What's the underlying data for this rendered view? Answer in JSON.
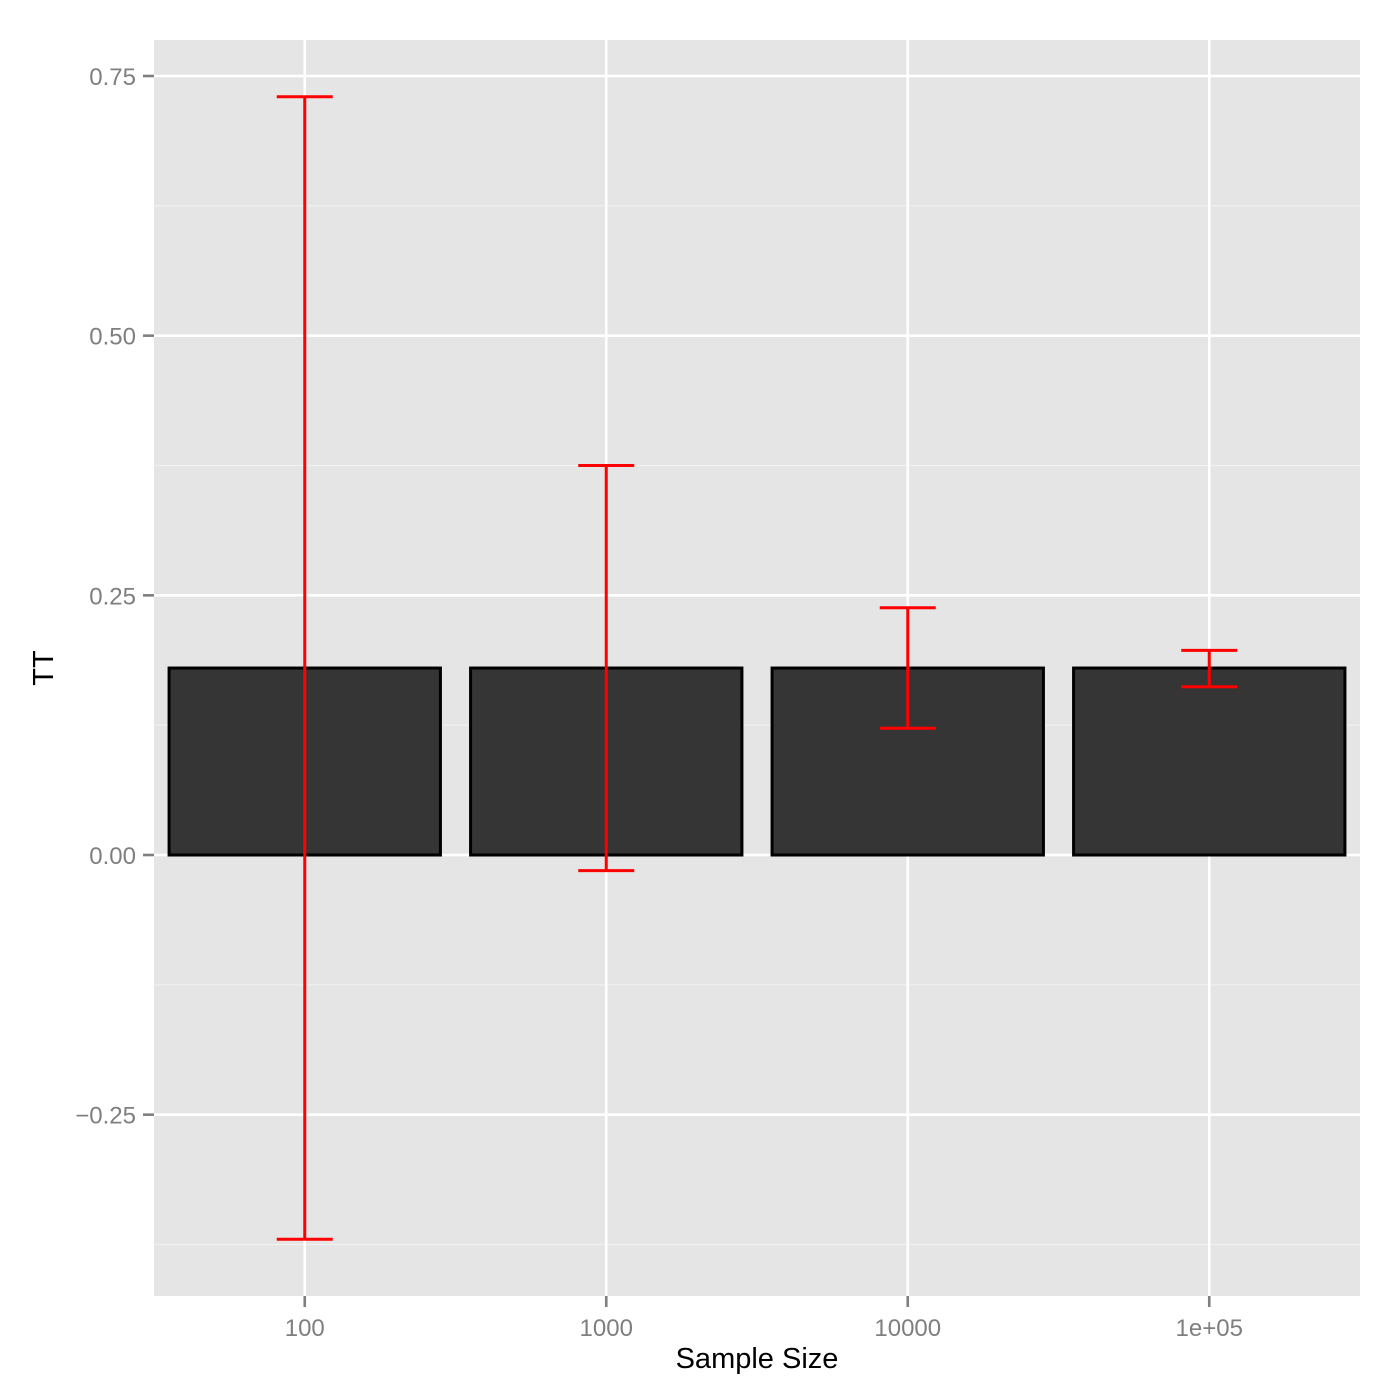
{
  "chart_data": {
    "type": "bar",
    "title": "",
    "xlabel": "Sample Size",
    "ylabel": "TT",
    "categories": [
      "100",
      "1000",
      "10000",
      "1e+05"
    ],
    "values": [
      0.18,
      0.18,
      0.18,
      0.18
    ],
    "error_bars": {
      "upper": [
        0.73,
        0.375,
        0.238,
        0.197
      ],
      "lower": [
        -0.37,
        -0.015,
        0.122,
        0.162
      ],
      "color": "#ff0000"
    },
    "ylim": [
      -0.41,
      0.785
    ],
    "yticks": [
      -0.25,
      0.0,
      0.25,
      0.5,
      0.75
    ],
    "ytick_labels": [
      "-0.25",
      "0.00",
      "0.25",
      "0.50",
      "0.75"
    ],
    "grid": true,
    "legend": null,
    "colors": {
      "panel_background": "#e5e5e5",
      "grid_major": "#ffffff",
      "grid_minor": "#f2f2f2",
      "bar_fill": "#353535",
      "bar_outline": "#000000",
      "error_bar": "#ff0000",
      "tick_text": "#7f7f7f"
    }
  }
}
